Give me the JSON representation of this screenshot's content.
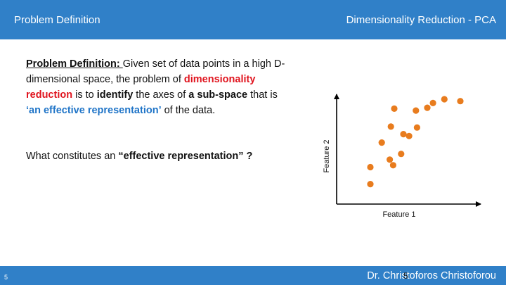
{
  "header": {
    "left_title": "Problem Definition",
    "right_title": "Dimensionality Reduction - PCA"
  },
  "body": {
    "heading": "Problem Definition: ",
    "p1": " Given set of data points in a high D-dimensional space, the problem of ",
    "red_term": "dimensionality reduction",
    "p2": " is to ",
    "bold_identify": "identify",
    "p3": " the axes of ",
    "bold_subspace": "a sub-space",
    "p4": " that is  ",
    "blue_term": "‘an effective representation’",
    "p5": " of the data.",
    "question_pre": "What constitutes an ",
    "question_bold": "“effective representation” ?"
  },
  "chart_data": {
    "type": "scatter",
    "xlabel": "Feature 1",
    "ylabel": "Feature 2",
    "x": [
      0.21,
      0.21,
      0.31,
      0.38,
      0.39,
      0.41,
      0.42,
      0.48,
      0.5,
      0.55,
      0.61,
      0.62,
      0.71,
      0.76,
      0.86,
      1.0
    ],
    "y": [
      0.1,
      0.28,
      0.54,
      0.36,
      0.71,
      0.3,
      0.9,
      0.42,
      0.63,
      0.61,
      0.88,
      0.7,
      0.91,
      0.96,
      1.0,
      0.98
    ],
    "color": "#e87c1e",
    "grid": false
  },
  "footer": {
    "slide_number": "5",
    "author": "Dr. Christoforos Christoforou",
    "page_center": "5"
  }
}
